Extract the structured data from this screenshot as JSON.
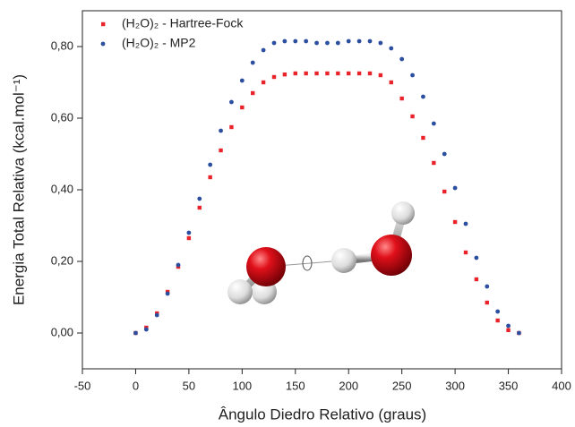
{
  "chart_data": {
    "type": "scatter",
    "xlabel": "Ângulo Diedro Relativo (graus)",
    "ylabel": "Energia Total Relativa (kcal.mol⁻¹)",
    "x": [
      0,
      10,
      20,
      30,
      40,
      50,
      60,
      70,
      80,
      90,
      100,
      110,
      120,
      130,
      140,
      150,
      160,
      170,
      180,
      190,
      200,
      210,
      220,
      230,
      240,
      250,
      260,
      270,
      280,
      290,
      300,
      310,
      320,
      330,
      340,
      350,
      360
    ],
    "series": [
      {
        "name": "(H₂O)₂  - Hartree-Fock",
        "color": "#e8232a",
        "marker": "square",
        "values": [
          0,
          0.015,
          0.055,
          0.115,
          0.185,
          0.265,
          0.35,
          0.435,
          0.51,
          0.575,
          0.63,
          0.67,
          0.7,
          0.715,
          0.722,
          0.725,
          0.725,
          0.725,
          0.725,
          0.725,
          0.725,
          0.725,
          0.725,
          0.72,
          0.7,
          0.655,
          0.605,
          0.545,
          0.475,
          0.395,
          0.31,
          0.225,
          0.15,
          0.085,
          0.035,
          0.008,
          0
        ]
      },
      {
        "name": "(H₂O)₂  - MP2",
        "color": "#2b4f9e",
        "marker": "circle",
        "values": [
          0,
          0.01,
          0.05,
          0.11,
          0.19,
          0.28,
          0.375,
          0.47,
          0.565,
          0.645,
          0.705,
          0.755,
          0.79,
          0.81,
          0.815,
          0.815,
          0.815,
          0.81,
          0.81,
          0.81,
          0.815,
          0.815,
          0.815,
          0.81,
          0.795,
          0.765,
          0.72,
          0.66,
          0.585,
          0.5,
          0.405,
          0.305,
          0.21,
          0.13,
          0.06,
          0.02,
          0
        ]
      }
    ],
    "xlim": [
      -50,
      400
    ],
    "xticks": [
      -50,
      0,
      50,
      100,
      150,
      200,
      250,
      300,
      350,
      400
    ],
    "ylim": [
      -0.1,
      0.9
    ],
    "yticks": [
      {
        "value": 0,
        "label": "0,00"
      },
      {
        "value": 0.2,
        "label": "0,20"
      },
      {
        "value": 0.4,
        "label": "0,40"
      },
      {
        "value": 0.6,
        "label": "0,60"
      },
      {
        "value": 0.8,
        "label": "0,80"
      }
    ],
    "legend": "upper-left"
  }
}
